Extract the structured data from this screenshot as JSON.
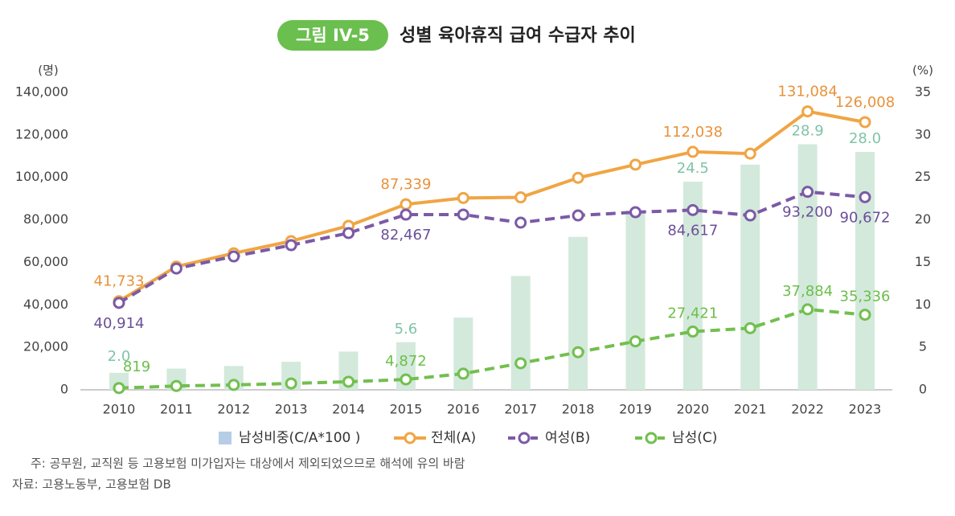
{
  "chart_data": {
    "type": "combo",
    "badge": "그림 IV-5",
    "title": "성별 육아휴직 급여 수급자 추이",
    "y_unit": "(명)",
    "y2_unit": "(%)",
    "categories": [
      "2010",
      "2011",
      "2012",
      "2013",
      "2014",
      "2015",
      "2016",
      "2017",
      "2018",
      "2019",
      "2020",
      "2021",
      "2022",
      "2023"
    ],
    "ylim": [
      0,
      140000
    ],
    "yticks": [
      0,
      {
        "value": 20000,
        "label": "20,000"
      },
      {
        "value": 40000,
        "label": "40,000"
      },
      {
        "value": 60000,
        "label": "60,000"
      },
      {
        "value": 80000,
        "label": "80,000"
      },
      {
        "value": 100000,
        "label": "100,000"
      },
      {
        "value": 120000,
        "label": "120,000"
      },
      {
        "value": 140000,
        "label": "140,000"
      }
    ],
    "y2lim": [
      0,
      35
    ],
    "y2ticks": [
      0,
      5,
      10,
      15,
      20,
      25,
      30,
      35
    ],
    "series": [
      {
        "name": "남성비중(C/A*100 )",
        "type": "bar",
        "axis": "y2",
        "color": "#d3e9dc",
        "label_color": "#7fc4a6",
        "values": [
          2.0,
          2.5,
          2.8,
          3.3,
          4.5,
          5.6,
          8.5,
          13.4,
          18.0,
          21.1,
          24.5,
          26.5,
          28.9,
          28.0
        ],
        "value_labels": [
          "2.0",
          null,
          null,
          null,
          null,
          "5.6",
          null,
          null,
          null,
          null,
          "24.5",
          null,
          "28.9",
          "28.0"
        ]
      },
      {
        "name": "전체(A)",
        "type": "line",
        "color": "#f0a544",
        "label_color": "#e8923a",
        "dashed": false,
        "values": [
          41733,
          58000,
          64300,
          70000,
          77200,
          87339,
          90300,
          90600,
          99800,
          106000,
          112038,
          111200,
          131084,
          126008
        ],
        "value_labels": [
          "41,733",
          null,
          null,
          null,
          null,
          "87,339",
          null,
          null,
          null,
          null,
          "112,038",
          null,
          "131,084",
          "126,008"
        ]
      },
      {
        "name": "여성(B)",
        "type": "line",
        "color": "#7b5aa6",
        "label_color": "#6b4f99",
        "dashed": true,
        "values": [
          40914,
          57100,
          62800,
          68100,
          73800,
          82467,
          82500,
          78700,
          82100,
          83600,
          84617,
          82100,
          93200,
          90672
        ],
        "value_labels": [
          "40,914",
          null,
          null,
          null,
          null,
          "82,467",
          null,
          null,
          null,
          null,
          "84,617",
          null,
          "93,200",
          "90,672"
        ]
      },
      {
        "name": "남성(C)",
        "type": "line",
        "color": "#72bf4e",
        "label_color": "#6cbf4a",
        "dashed": true,
        "values": [
          819,
          1800,
          2300,
          3000,
          3800,
          4872,
          7600,
          12500,
          17700,
          22800,
          27421,
          29000,
          37884,
          35336
        ],
        "value_labels": [
          "819",
          null,
          null,
          null,
          null,
          "4,872",
          null,
          null,
          null,
          null,
          "27,421",
          null,
          "37,884",
          "35,336"
        ]
      }
    ]
  },
  "notes": [
    "주: 공무원, 교직원 등 고용보험 미가입자는 대상에서 제외되었으므로 해석에 유의 바람",
    "자료: 고용노동부, 고용보험 DB"
  ]
}
